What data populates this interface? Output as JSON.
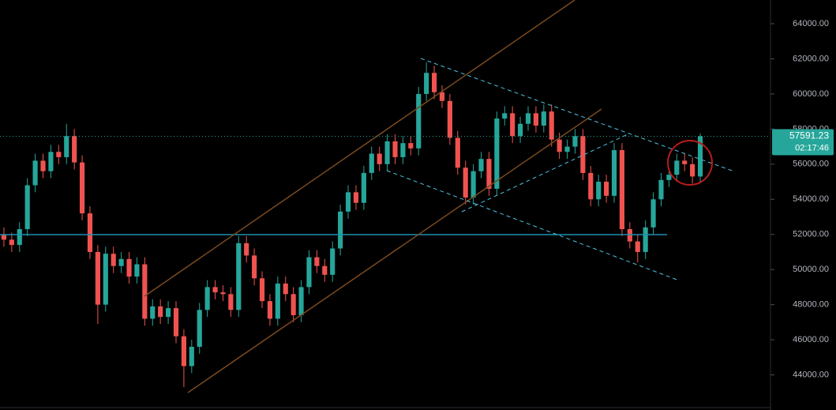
{
  "chart_data": {
    "type": "candlestick",
    "up_color": "#26a69a",
    "down_color": "#ef5350",
    "open": [
      52000,
      51700,
      51400,
      52300,
      54800,
      56200,
      55600,
      56700,
      56400,
      57600,
      56100,
      53200,
      51000,
      48000,
      50900,
      50200,
      50600,
      49600,
      50300,
      47200,
      47900,
      47300,
      47800,
      46200,
      44500,
      45600,
      47700,
      49000,
      48700,
      48600,
      47700,
      51500,
      50800,
      49500,
      48200,
      47200,
      49200,
      48600,
      47400,
      49000,
      50700,
      50200,
      49700,
      51200,
      53300,
      54400,
      53800,
      55500,
      56600,
      56000,
      57300,
      56400,
      57200,
      56900,
      60000,
      61200,
      60100,
      59600,
      57500,
      55800,
      54100,
      55600,
      56300,
      54600,
      58600,
      58900,
      57600,
      58300,
      58900,
      58200,
      59000,
      57400,
      56700,
      57000,
      57600,
      55500,
      54000,
      55000,
      54200,
      56800,
      52300,
      51600,
      51000,
      52400,
      54000,
      55100,
      55400,
      56200,
      56000,
      55300
    ],
    "high": [
      52400,
      52100,
      52700,
      55200,
      56600,
      56600,
      57100,
      57100,
      58300,
      58000,
      56500,
      53600,
      51400,
      51300,
      51300,
      51000,
      51000,
      50700,
      50700,
      48300,
      48300,
      48200,
      48200,
      46600,
      46000,
      48100,
      49400,
      49400,
      49100,
      49000,
      51900,
      51900,
      51200,
      49900,
      48600,
      49600,
      49600,
      49000,
      49400,
      51100,
      51100,
      50600,
      51600,
      53700,
      54800,
      54800,
      55900,
      57000,
      57000,
      57700,
      57700,
      57600,
      57600,
      60400,
      61800,
      61600,
      60500,
      60000,
      57900,
      56200,
      56000,
      56700,
      56700,
      59000,
      59300,
      59300,
      58700,
      59300,
      59300,
      59400,
      59400,
      57800,
      57400,
      58000,
      58000,
      55900,
      55400,
      55400,
      57200,
      57200,
      52700,
      52000,
      52800,
      54400,
      55500,
      55800,
      56600,
      56600,
      56400,
      57750
    ],
    "low": [
      51300,
      51000,
      51000,
      51900,
      54400,
      55200,
      55200,
      56000,
      56000,
      55700,
      52800,
      50600,
      46900,
      47600,
      49800,
      49800,
      49200,
      49200,
      46800,
      46800,
      46900,
      46900,
      45800,
      43300,
      44100,
      45200,
      47300,
      48300,
      48200,
      47300,
      47300,
      50400,
      49100,
      47800,
      46800,
      46800,
      48200,
      47000,
      47000,
      48600,
      49800,
      49300,
      49300,
      50800,
      52900,
      53400,
      53400,
      55100,
      55600,
      55600,
      56000,
      56000,
      56500,
      56500,
      59600,
      59700,
      59200,
      57100,
      55400,
      53700,
      53700,
      55200,
      54200,
      54200,
      58200,
      57200,
      57200,
      57900,
      57800,
      57800,
      57000,
      56300,
      56300,
      56600,
      55100,
      53600,
      53600,
      53800,
      53800,
      51900,
      51200,
      50400,
      50600,
      52000,
      53600,
      54700,
      55000,
      55600,
      54900,
      54900
    ],
    "close": [
      51700,
      51400,
      52300,
      54800,
      56200,
      55600,
      56700,
      56400,
      57600,
      56100,
      53200,
      51000,
      48000,
      50900,
      50200,
      50600,
      49600,
      50300,
      47200,
      47900,
      47300,
      47800,
      46200,
      44500,
      45600,
      47700,
      49000,
      48700,
      48600,
      47700,
      51500,
      50800,
      49500,
      48200,
      47200,
      49200,
      48600,
      47400,
      49000,
      50700,
      50200,
      49700,
      51200,
      53300,
      54400,
      53800,
      55500,
      56600,
      56000,
      57300,
      56400,
      57200,
      56900,
      60000,
      61200,
      60100,
      59600,
      57500,
      55800,
      54100,
      55600,
      56300,
      54600,
      58600,
      58900,
      57600,
      58300,
      58900,
      58200,
      59000,
      57400,
      56700,
      57000,
      57600,
      55500,
      54000,
      55000,
      54200,
      56800,
      52300,
      51600,
      51000,
      52400,
      54000,
      55100,
      55400,
      56200,
      56000,
      55300,
      57591.23
    ],
    "ylim": [
      42000,
      65350
    ],
    "yticks": [
      {
        "value": 44000,
        "label": "44000.00"
      },
      {
        "value": 46000,
        "label": "46000.00"
      },
      {
        "value": 48000,
        "label": "48000.00"
      },
      {
        "value": 50000,
        "label": "50000.00"
      },
      {
        "value": 52000,
        "label": "52000.00"
      },
      {
        "value": 54000,
        "label": "54000.00"
      },
      {
        "value": 56000,
        "label": "56000.00"
      },
      {
        "value": 58000,
        "label": "58000.00"
      },
      {
        "value": 60000,
        "label": "60000.00"
      },
      {
        "value": 62000,
        "label": "62000.00"
      },
      {
        "value": 64000,
        "label": "64000.00"
      }
    ],
    "last_price": 57591.23,
    "countdown": "02:17:46"
  }
}
